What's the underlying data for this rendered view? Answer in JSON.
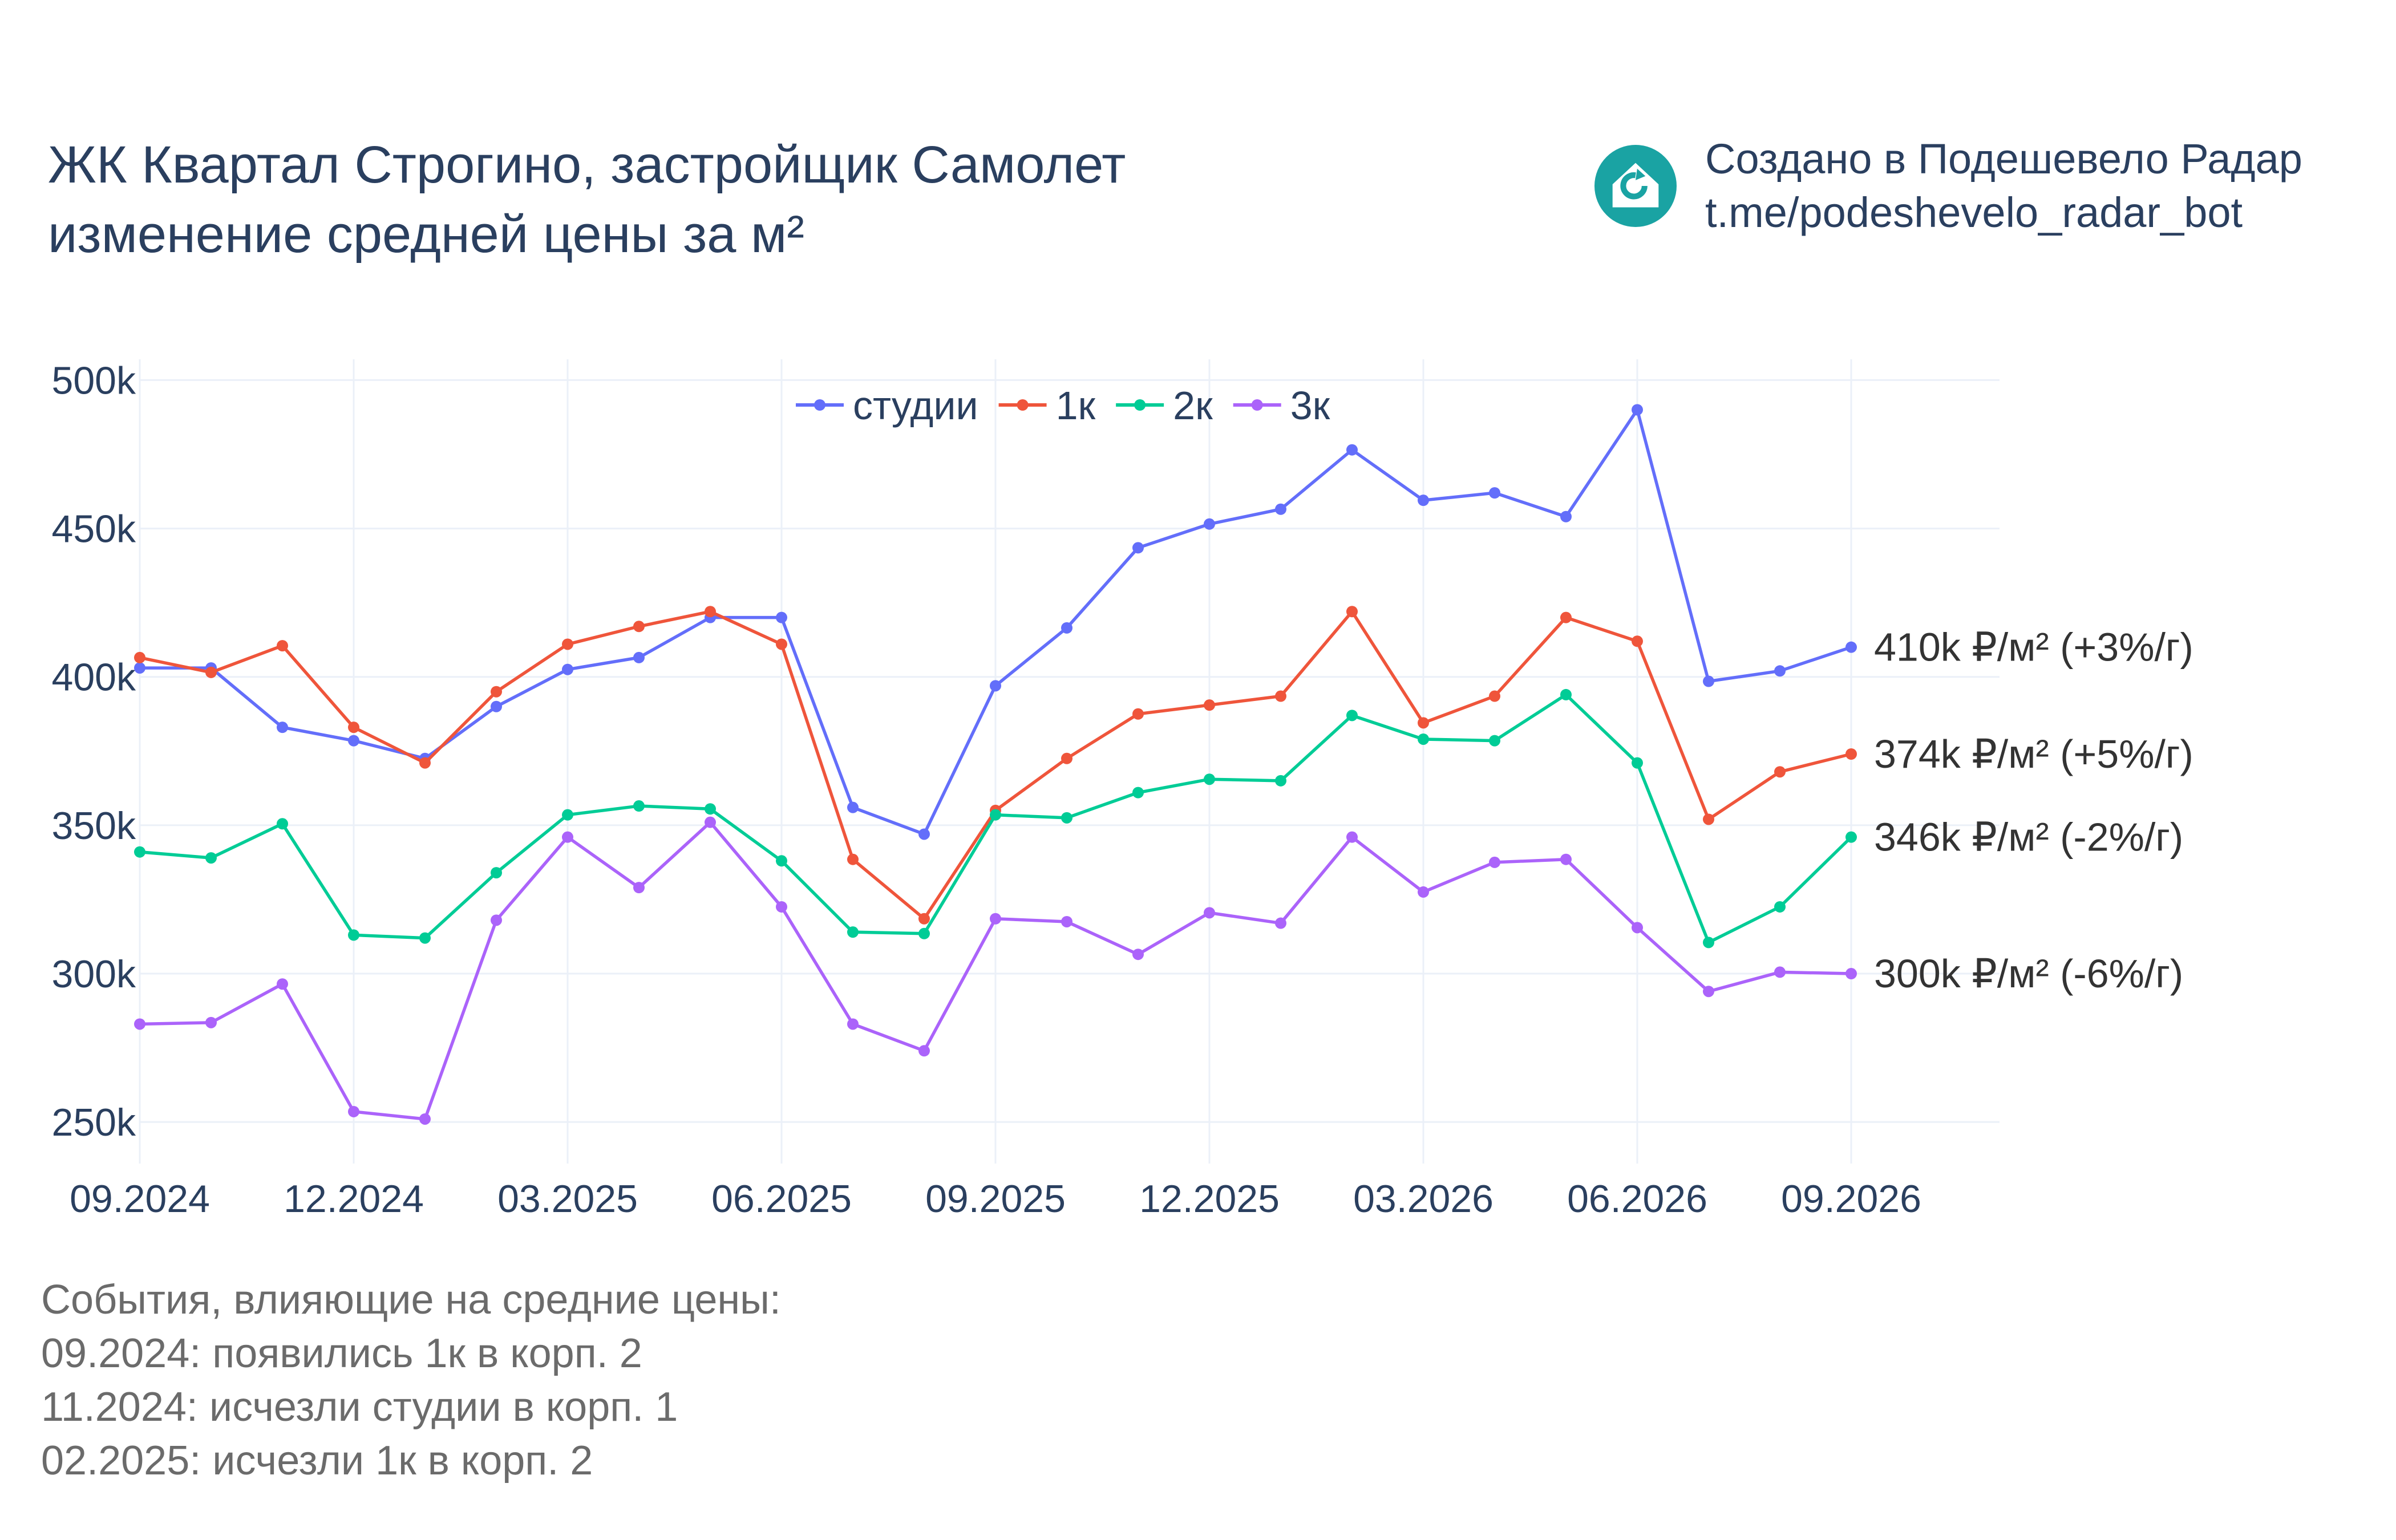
{
  "title": {
    "line1": "ЖК Квартал Строгино, застройщик Самолет",
    "line2": "изменение средней цены за м²"
  },
  "brand": {
    "line1": "Создано в Подешевело Радар",
    "line2": "t.me/podeshevelo_radar_bot",
    "icon": "house-logo-icon",
    "color": "#1aa3a3"
  },
  "events": {
    "heading": "События, влияющие на средние цены:",
    "items": [
      "09.2024: появились 1к в корп. 2",
      "11.2024: исчезли студии в корп. 1",
      "02.2025: исчезли 1к в корп. 2"
    ]
  },
  "chart_data": {
    "type": "line",
    "x": [
      "2024-09",
      "2024-10",
      "2024-11",
      "2024-12",
      "2025-01",
      "2025-02",
      "2025-03",
      "2025-04",
      "2025-05",
      "2025-06",
      "2025-07",
      "2025-08",
      "2025-09",
      "2025-10",
      "2025-11",
      "2025-12",
      "2026-01",
      "2026-02",
      "2026-03",
      "2026-04",
      "2026-05",
      "2026-06",
      "2026-07",
      "2026-08",
      "2026-09"
    ],
    "x_tick_labels": [
      "09.2024",
      "12.2024",
      "03.2025",
      "06.2025",
      "09.2025",
      "12.2025",
      "03.2026",
      "06.2026",
      "09.2026"
    ],
    "y_tick_labels": [
      "250k",
      "300k",
      "350k",
      "400k",
      "450k",
      "500k"
    ],
    "y_ticks": [
      250000,
      300000,
      350000,
      400000,
      450000,
      500000
    ],
    "ylim": [
      236000,
      507000
    ],
    "grid": true,
    "legend_position": "top-center",
    "series": [
      {
        "name": "студии",
        "color": "#636efa",
        "end_label": "410k ₽/м² (+3%/г)",
        "values": [
          403000,
          403000,
          383000,
          378500,
          372500,
          390000,
          402500,
          406500,
          420000,
          420000,
          356000,
          347000,
          397000,
          416500,
          443500,
          451500,
          456500,
          476500,
          459500,
          462000,
          454000,
          490000,
          398500,
          402000,
          410000
        ]
      },
      {
        "name": "1к",
        "color": "#ef553b",
        "end_label": "374k ₽/м² (+5%/г)",
        "values": [
          406500,
          401500,
          410500,
          383000,
          371000,
          395000,
          411000,
          417000,
          422000,
          411000,
          338500,
          318500,
          355000,
          372500,
          387500,
          390500,
          393500,
          422000,
          384500,
          393500,
          420000,
          412000,
          352000,
          368000,
          374000
        ]
      },
      {
        "name": "2к",
        "color": "#00cc96",
        "end_label": "346k ₽/м² (-2%/г)",
        "values": [
          341000,
          339000,
          350500,
          313000,
          312000,
          334000,
          353500,
          356500,
          355500,
          338000,
          314000,
          313500,
          353500,
          352500,
          361000,
          365500,
          365000,
          387000,
          379000,
          378500,
          394000,
          371000,
          310500,
          322500,
          346000
        ]
      },
      {
        "name": "3к",
        "color": "#ab63fa",
        "end_label": "300k ₽/м² (-6%/г)",
        "values": [
          283000,
          283500,
          296500,
          253500,
          251000,
          318000,
          346000,
          329000,
          351000,
          322500,
          283000,
          274000,
          318500,
          317500,
          306500,
          320500,
          317000,
          346000,
          327500,
          337500,
          338500,
          315500,
          294000,
          300500,
          300000
        ]
      }
    ]
  }
}
